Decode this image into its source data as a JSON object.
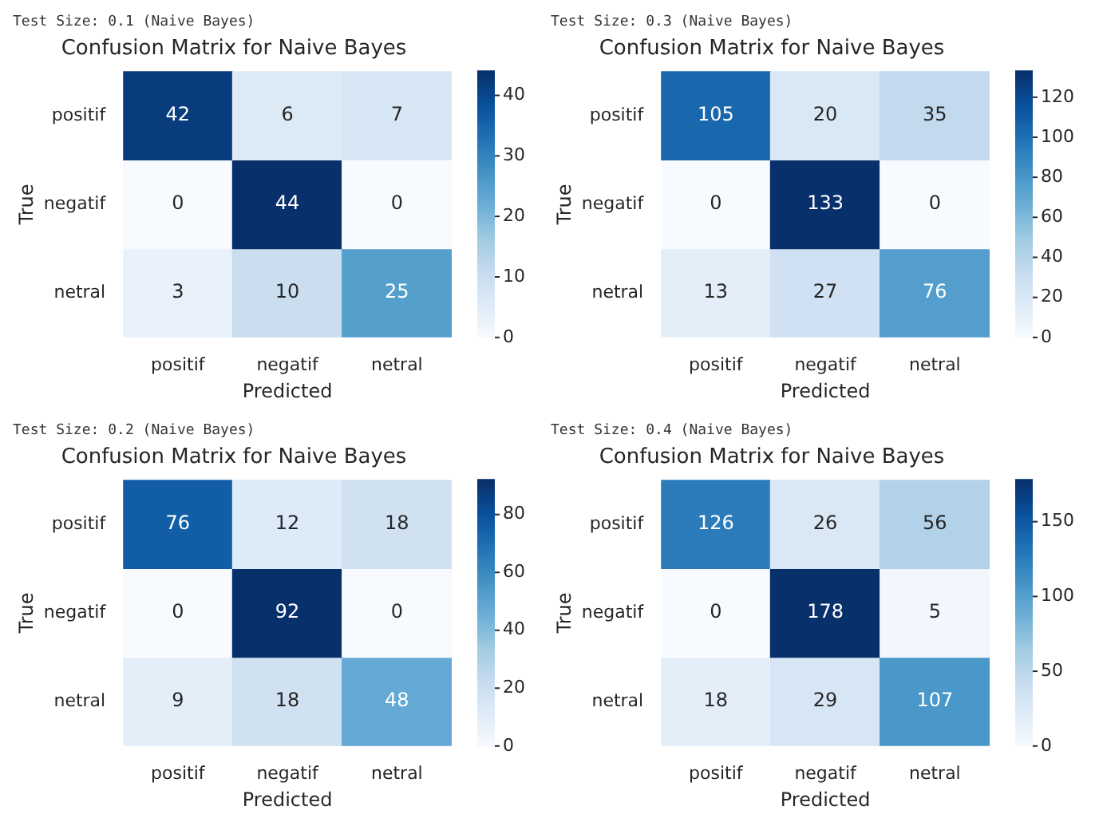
{
  "chart_data": [
    {
      "type": "heatmap",
      "subtitle": "Test Size: 0.1 (Naive Bayes)",
      "title": "Confusion Matrix for Naive Bayes",
      "xlabel": "Predicted",
      "ylabel": "True",
      "categories": [
        "positif",
        "negatif",
        "netral"
      ],
      "y_categories": [
        "positif",
        "negatif",
        "netral"
      ],
      "cells": [
        [
          42,
          6,
          7
        ],
        [
          0,
          44,
          0
        ],
        [
          3,
          10,
          25
        ]
      ],
      "clim": [
        0,
        44
      ],
      "cticks": [
        0,
        10,
        20,
        30,
        40
      ],
      "data_labels": true
    },
    {
      "type": "heatmap",
      "subtitle": "Test Size: 0.3 (Naive Bayes)",
      "title": "Confusion Matrix for Naive Bayes",
      "xlabel": "Predicted",
      "ylabel": "True",
      "categories": [
        "positif",
        "negatif",
        "netral"
      ],
      "y_categories": [
        "positif",
        "negatif",
        "netral"
      ],
      "cells": [
        [
          105,
          20,
          35
        ],
        [
          0,
          133,
          0
        ],
        [
          13,
          27,
          76
        ]
      ],
      "clim": [
        0,
        133
      ],
      "cticks": [
        0,
        20,
        40,
        60,
        80,
        100,
        120
      ],
      "data_labels": true
    },
    {
      "type": "heatmap",
      "subtitle": "Test Size: 0.2 (Naive Bayes)",
      "title": "Confusion Matrix for Naive Bayes",
      "xlabel": "Predicted",
      "ylabel": "True",
      "categories": [
        "positif",
        "negatif",
        "netral"
      ],
      "y_categories": [
        "positif",
        "negatif",
        "netral"
      ],
      "cells": [
        [
          76,
          12,
          18
        ],
        [
          0,
          92,
          0
        ],
        [
          9,
          18,
          48
        ]
      ],
      "clim": [
        0,
        92
      ],
      "cticks": [
        0,
        20,
        40,
        60,
        80
      ],
      "data_labels": true
    },
    {
      "type": "heatmap",
      "subtitle": "Test Size: 0.4 (Naive Bayes)",
      "title": "Confusion Matrix for Naive Bayes",
      "xlabel": "Predicted",
      "ylabel": "True",
      "categories": [
        "positif",
        "negatif",
        "netral"
      ],
      "y_categories": [
        "positif",
        "negatif",
        "netral"
      ],
      "cells": [
        [
          126,
          26,
          56
        ],
        [
          0,
          178,
          5
        ],
        [
          18,
          29,
          107
        ]
      ],
      "clim": [
        0,
        178
      ],
      "cticks": [
        0,
        50,
        100,
        150
      ],
      "data_labels": true
    }
  ]
}
